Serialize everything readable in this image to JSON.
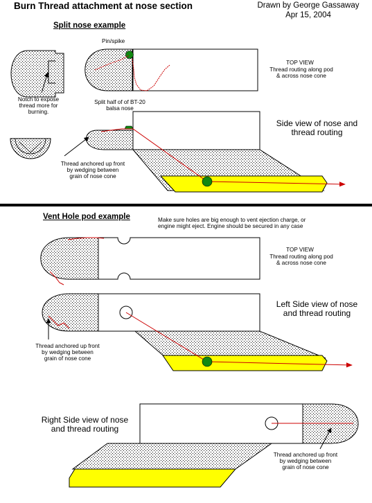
{
  "header": {
    "title": "Burn Thread attachment at nose section",
    "credit_line1": "Drawn by George Gassaway",
    "credit_line2": "Apr 15, 2004"
  },
  "split_section": {
    "heading": "Split nose example",
    "pin_label": "Pin/spike",
    "notch_label": "Notch to expose\nthread  more for\nburning.",
    "top_view_title": "TOP VIEW",
    "top_view_caption": "Thread routing along pod\n& across nose cone",
    "split_half_label": "Split half of of BT-20\nbalsa nose",
    "side_view_caption": "Side view of nose and\nthread routing",
    "anchor_label": "Thread anchored up front\nby wedging between\ngrain of nose cone"
  },
  "vent_section": {
    "heading": "Vent Hole pod example",
    "warning": "Make sure holes are big enough to vent ejection charge, or\nengine might eject. Engine should be secured in any case",
    "top_view_title": "TOP VIEW",
    "top_view_caption": "Thread routing along pod\n& across nose cone",
    "left_side_caption": "Left Side view of nose\nand thread routing",
    "left_anchor_label": "Thread anchored up front\nby wedging between\ngrain of nose cone",
    "right_side_caption": "Right Side view of nose\nand thread routing",
    "right_anchor_label": "Thread anchored up front\nby wedging between\ngrain of nose cone"
  },
  "colors": {
    "thread": "#cc0000",
    "pin": "#118811",
    "wing": "#ffff00",
    "stipple": "#000000"
  }
}
